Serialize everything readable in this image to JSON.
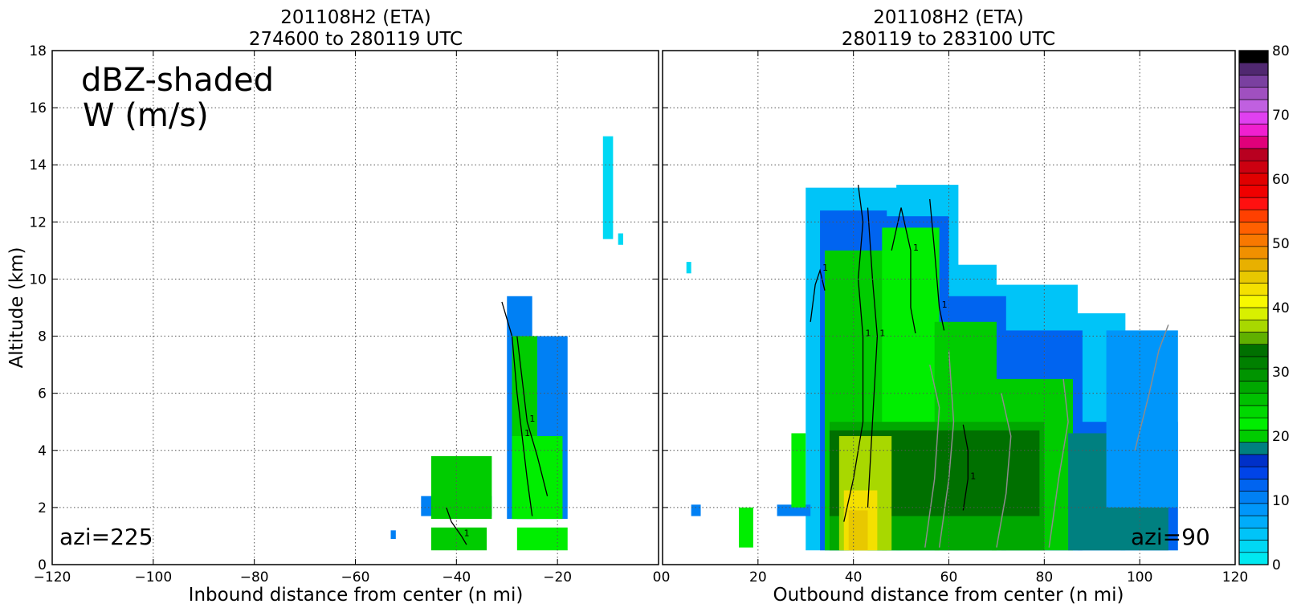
{
  "colors": {
    "black_contour": "#000000",
    "gray_contour": "#8c8c8c",
    "frame": "#000000",
    "grid": "#555555"
  },
  "chart_data": [
    {
      "type": "heatmap",
      "id": "left",
      "title_line1": "201108H2 (ETA)",
      "title_line2": "274600 to 280119 UTC",
      "xlabel": "Inbound distance from center (n mi)",
      "ylabel": "Altitude (km)",
      "xlim": [
        -120,
        0
      ],
      "ylim": [
        0,
        18
      ],
      "xticks": [
        "−120",
        "−100",
        "−80",
        "−60",
        "−40",
        "−20",
        "0"
      ],
      "xtick_values": [
        -120,
        -100,
        -80,
        -60,
        -40,
        -20,
        0
      ],
      "yticks": [
        "0",
        "2",
        "4",
        "6",
        "8",
        "10",
        "12",
        "14",
        "16",
        "18"
      ],
      "ytick_values": [
        0,
        2,
        4,
        6,
        8,
        10,
        12,
        14,
        16,
        18
      ],
      "grid": true,
      "annotation_line1": "dBZ-shaded",
      "annotation_line2": "W (m/s)",
      "azimuth_label": "azi=225",
      "contour_label": "1",
      "reflectivity_dbz": [
        {
          "x": [
            -30,
            -25
          ],
          "y": [
            1.6,
            9.4
          ],
          "dbz": 10
        },
        {
          "x": [
            -28,
            -18
          ],
          "y": [
            1.6,
            8.0
          ],
          "dbz": 10
        },
        {
          "x": [
            -29,
            -24
          ],
          "y": [
            1.6,
            8.0
          ],
          "dbz": 20
        },
        {
          "x": [
            -29,
            -19
          ],
          "y": [
            1.6,
            4.5
          ],
          "dbz": 22
        },
        {
          "x": [
            -28,
            -18
          ],
          "y": [
            0.5,
            1.3
          ],
          "dbz": 22
        },
        {
          "x": [
            -47,
            -33
          ],
          "y": [
            1.7,
            2.4
          ],
          "dbz": 10
        },
        {
          "x": [
            -45,
            -33
          ],
          "y": [
            1.6,
            3.8
          ],
          "dbz": 20
        },
        {
          "x": [
            -45,
            -34
          ],
          "y": [
            0.5,
            1.3
          ],
          "dbz": 20
        },
        {
          "x": [
            -53,
            -52
          ],
          "y": [
            0.9,
            1.2
          ],
          "dbz": 10
        },
        {
          "x": [
            -11,
            -9
          ],
          "y": [
            11.4,
            15.0
          ],
          "dbz": 3
        },
        {
          "x": [
            -8,
            -7
          ],
          "y": [
            11.2,
            11.6
          ],
          "dbz": 3
        }
      ],
      "w_contours": [
        {
          "level": 1,
          "x": [
            -31,
            -29,
            -28,
            -27,
            -26,
            -25
          ],
          "y": [
            9.2,
            8.0,
            6.0,
            4.5,
            3.0,
            1.7
          ]
        },
        {
          "level": 1,
          "x": [
            -28,
            -27,
            -26,
            -24,
            -22
          ],
          "y": [
            8.0,
            6.5,
            5.0,
            3.8,
            2.4
          ]
        },
        {
          "level": 1,
          "x": [
            -42,
            -41,
            -39,
            -38
          ],
          "y": [
            2.0,
            1.5,
            1.0,
            0.7
          ]
        }
      ]
    },
    {
      "type": "heatmap",
      "id": "right",
      "title_line1": "201108H2 (ETA)",
      "title_line2": "280119 to 283100 UTC",
      "xlabel": "Outbound distance from center (n mi)",
      "xlim": [
        0,
        120
      ],
      "ylim": [
        0,
        18
      ],
      "xticks": [
        "0",
        "20",
        "40",
        "60",
        "80",
        "100",
        "120"
      ],
      "xtick_values": [
        0,
        20,
        40,
        60,
        80,
        100,
        120
      ],
      "ytick_values": [
        0,
        2,
        4,
        6,
        8,
        10,
        12,
        14,
        16,
        18
      ],
      "grid": true,
      "azimuth_label": "azi=90",
      "contour_label": "1",
      "reflectivity_dbz": [
        {
          "x": [
            30,
            50
          ],
          "y": [
            0.5,
            13.2
          ],
          "dbz": 5
        },
        {
          "x": [
            49,
            62
          ],
          "y": [
            0.5,
            13.3
          ],
          "dbz": 5
        },
        {
          "x": [
            61,
            70
          ],
          "y": [
            0.5,
            10.5
          ],
          "dbz": 5
        },
        {
          "x": [
            69,
            87
          ],
          "y": [
            0.5,
            9.8
          ],
          "dbz": 5
        },
        {
          "x": [
            86,
            97
          ],
          "y": [
            0.5,
            8.8
          ],
          "dbz": 5
        },
        {
          "x": [
            96,
            108
          ],
          "y": [
            0.5,
            8.2
          ],
          "dbz": 5
        },
        {
          "x": [
            33,
            47
          ],
          "y": [
            0.5,
            12.4
          ],
          "dbz": 12
        },
        {
          "x": [
            46,
            60
          ],
          "y": [
            0.5,
            12.2
          ],
          "dbz": 12
        },
        {
          "x": [
            59,
            72
          ],
          "y": [
            0.5,
            9.4
          ],
          "dbz": 12
        },
        {
          "x": [
            71,
            88
          ],
          "y": [
            0.5,
            8.2
          ],
          "dbz": 12
        },
        {
          "x": [
            87,
            108
          ],
          "y": [
            0.5,
            5.0
          ],
          "dbz": 12
        },
        {
          "x": [
            34,
            47
          ],
          "y": [
            0.5,
            11.0
          ],
          "dbz": 20
        },
        {
          "x": [
            46,
            58
          ],
          "y": [
            0.5,
            11.8
          ],
          "dbz": 22
        },
        {
          "x": [
            57,
            70
          ],
          "y": [
            0.5,
            8.5
          ],
          "dbz": 20
        },
        {
          "x": [
            69,
            86
          ],
          "y": [
            0.5,
            6.5
          ],
          "dbz": 20
        },
        {
          "x": [
            85,
            106
          ],
          "y": [
            0.5,
            4.6
          ],
          "dbz": 18
        },
        {
          "x": [
            35,
            80
          ],
          "y": [
            0.5,
            5.0
          ],
          "dbz": 28
        },
        {
          "x": [
            35,
            79
          ],
          "y": [
            1.7,
            4.7
          ],
          "dbz": 34
        },
        {
          "x": [
            37,
            48
          ],
          "y": [
            0.5,
            4.5
          ],
          "dbz": 38
        },
        {
          "x": [
            38,
            45
          ],
          "y": [
            0.5,
            2.6
          ],
          "dbz": 42
        },
        {
          "x": [
            39,
            43
          ],
          "y": [
            0.5,
            1.9
          ],
          "dbz": 45
        },
        {
          "x": [
            93,
            108
          ],
          "y": [
            2.0,
            8.2
          ],
          "dbz": 8
        },
        {
          "x": [
            5,
            6
          ],
          "y": [
            10.2,
            10.6
          ],
          "dbz": 3
        },
        {
          "x": [
            6,
            8
          ],
          "y": [
            1.7,
            2.1
          ],
          "dbz": 10
        },
        {
          "x": [
            16,
            19
          ],
          "y": [
            0.6,
            2.0
          ],
          "dbz": 22
        },
        {
          "x": [
            24,
            31
          ],
          "y": [
            1.7,
            2.1
          ],
          "dbz": 10
        },
        {
          "x": [
            27,
            30
          ],
          "y": [
            2.0,
            4.6
          ],
          "dbz": 22
        }
      ],
      "w_contours": [
        {
          "level": 1,
          "x": [
            41,
            42,
            41,
            42,
            42,
            40,
            38
          ],
          "y": [
            13.3,
            12,
            10,
            8,
            5,
            3,
            1.5
          ]
        },
        {
          "level": 1,
          "x": [
            43,
            44,
            45,
            44,
            43
          ],
          "y": [
            12.5,
            10,
            8,
            5,
            2
          ]
        },
        {
          "level": 1,
          "x": [
            48,
            50,
            52,
            52,
            53
          ],
          "y": [
            11,
            12.5,
            11,
            9,
            8.1
          ]
        },
        {
          "level": 1,
          "x": [
            56,
            57,
            58,
            59
          ],
          "y": [
            12.8,
            11,
            9,
            8.2
          ]
        },
        {
          "level": 1,
          "x": [
            31,
            32,
            33,
            34
          ],
          "y": [
            8.5,
            9.8,
            10.3,
            9.6
          ]
        },
        {
          "level": 1,
          "x": [
            63,
            64,
            64,
            63
          ],
          "y": [
            4.9,
            4.0,
            3.0,
            1.9
          ]
        }
      ],
      "w_negative_contours": [
        {
          "level": -1,
          "x": [
            55,
            57,
            58,
            56
          ],
          "y": [
            0.6,
            3.0,
            5.5,
            7.0
          ]
        },
        {
          "level": -1,
          "x": [
            58,
            60,
            61,
            60
          ],
          "y": [
            0.6,
            3.0,
            5.0,
            7.5
          ]
        },
        {
          "level": -1,
          "x": [
            70,
            72,
            73,
            71
          ],
          "y": [
            0.6,
            2.5,
            4.5,
            6.0
          ]
        },
        {
          "level": -1,
          "x": [
            81,
            83,
            85,
            84
          ],
          "y": [
            0.6,
            3.0,
            5.0,
            6.5
          ]
        },
        {
          "level": -1,
          "x": [
            99,
            102,
            104,
            106
          ],
          "y": [
            4.0,
            6.0,
            7.5,
            8.4
          ]
        }
      ]
    },
    {
      "type": "colorbar",
      "id": "colorbar",
      "range": [
        0,
        80
      ],
      "ticks": [
        "0",
        "10",
        "20",
        "30",
        "40",
        "50",
        "60",
        "70",
        "80"
      ],
      "tick_values": [
        0,
        10,
        20,
        30,
        40,
        50,
        60,
        70,
        80
      ],
      "colors": [
        "#00e8f0",
        "#00d8f4",
        "#00c4f8",
        "#00acfa",
        "#0096fa",
        "#0080f4",
        "#0064f0",
        "#0044e8",
        "#0030c8",
        "#008080",
        "#00cc00",
        "#00ee00",
        "#00d800",
        "#00c000",
        "#00a800",
        "#009400",
        "#008000",
        "#007000",
        "#60b000",
        "#a8d800",
        "#d8f000",
        "#f8f800",
        "#f4e000",
        "#e8c800",
        "#e8b000",
        "#f09000",
        "#f87800",
        "#ff6000",
        "#ff4000",
        "#ff1010",
        "#f00000",
        "#e00000",
        "#cc0010",
        "#b80020",
        "#e0007a",
        "#f020d0",
        "#e040f0",
        "#c060e0",
        "#a050c0",
        "#7a40a0",
        "#502870",
        "#000000"
      ]
    }
  ]
}
